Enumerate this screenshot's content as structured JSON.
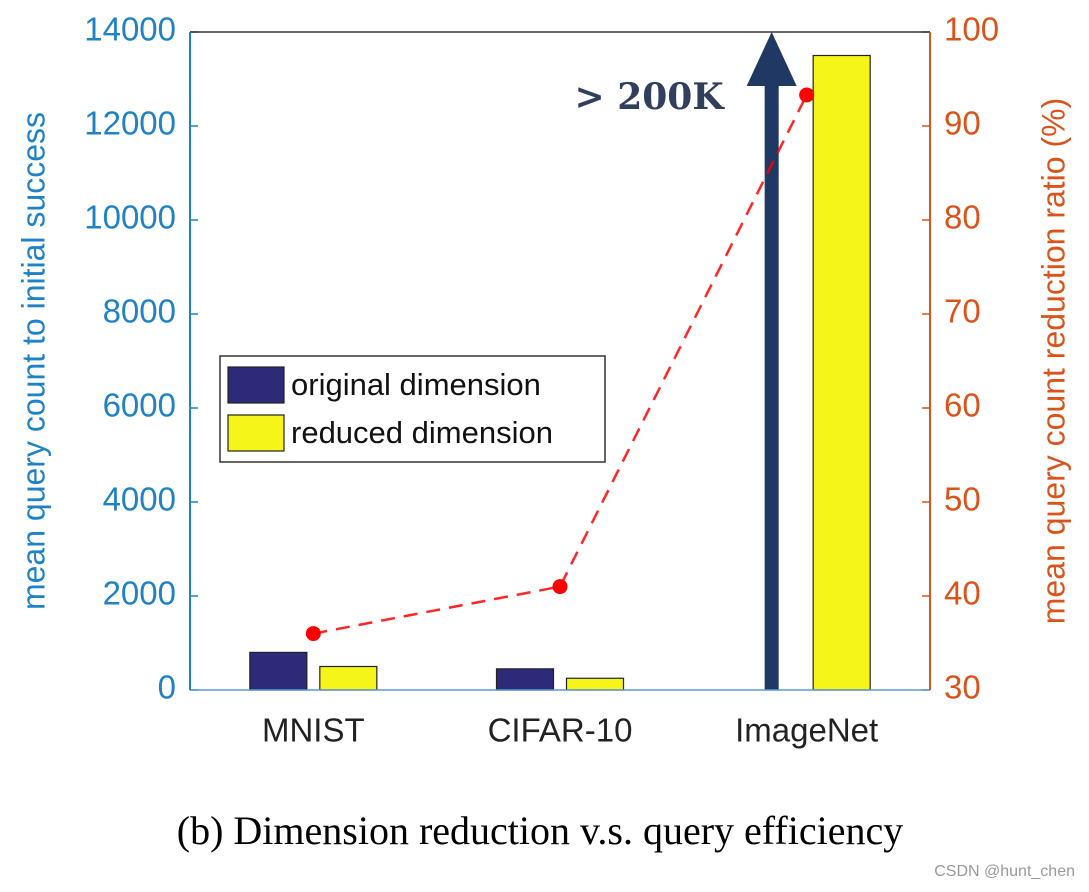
{
  "chart_data": {
    "type": "bar",
    "categories": [
      "MNIST",
      "CIFAR-10",
      "ImageNet"
    ],
    "series": [
      {
        "name": "original dimension",
        "color": "#2e2a7a",
        "values": [
          800,
          450,
          null
        ]
      },
      {
        "name": "reduced dimension",
        "color": "#f5f51a",
        "values": [
          500,
          250,
          13500
        ]
      },
      {
        "name": "reduction ratio",
        "type": "line",
        "axis": "y2",
        "color": "#ff0000",
        "values": [
          36,
          41,
          93.3
        ]
      }
    ],
    "ylabel": "mean query count to initial success",
    "y2label": "mean query count reduction ratio (%)",
    "ylim": [
      0,
      14000
    ],
    "yticks": [
      0,
      2000,
      4000,
      6000,
      8000,
      10000,
      12000,
      14000
    ],
    "y2lim": [
      30,
      100
    ],
    "y2ticks": [
      30,
      40,
      50,
      60,
      70,
      80,
      90,
      100
    ],
    "annotation": "> 200K",
    "caption": "(b) Dimension reduction v.s. query efficiency",
    "watermark": "CSDN @hunt_chen",
    "legend": "center-left"
  }
}
